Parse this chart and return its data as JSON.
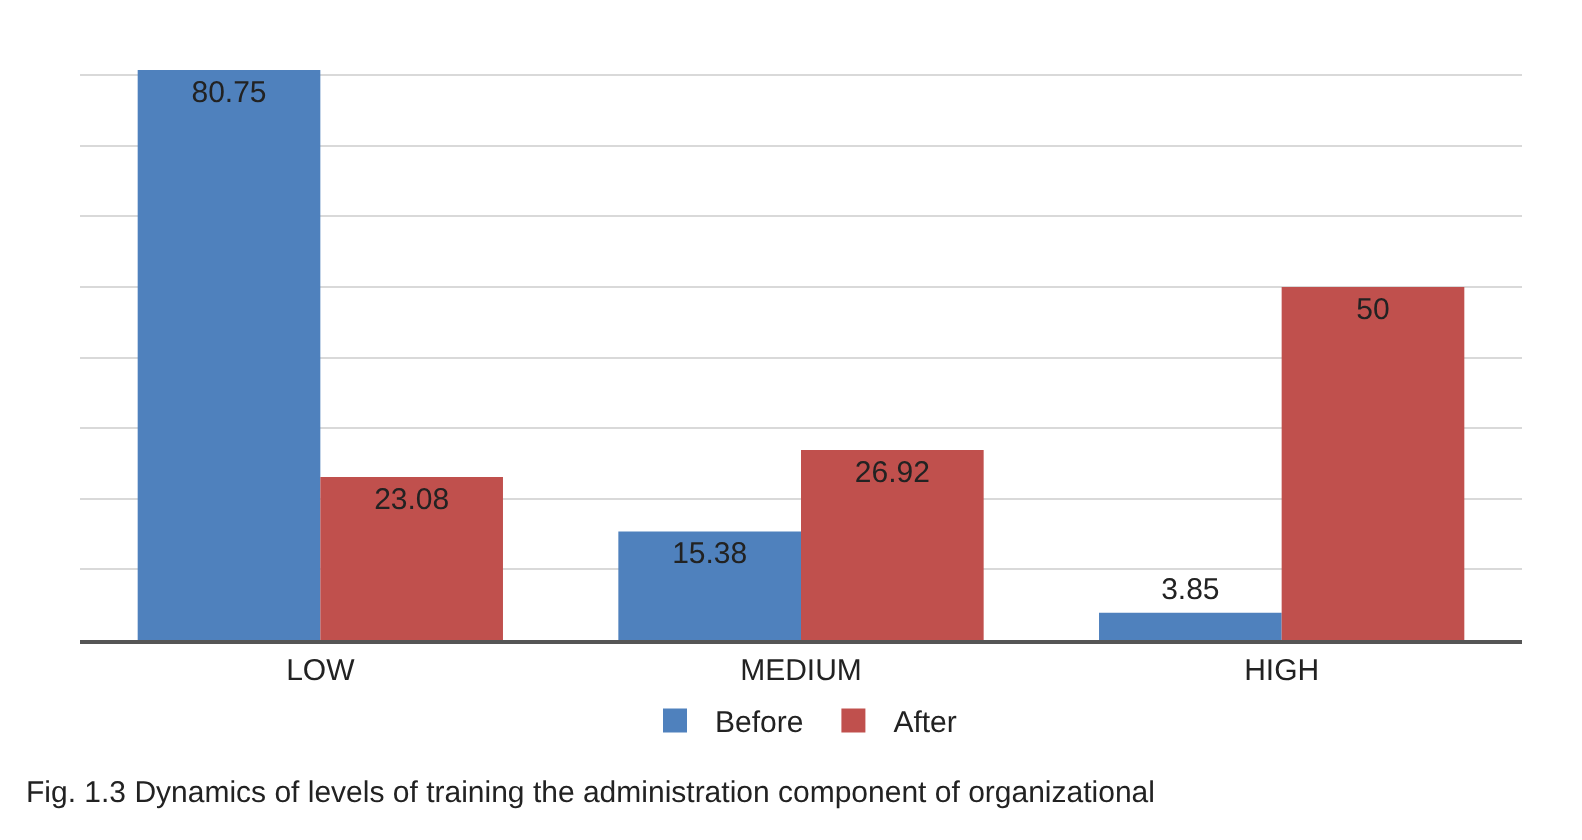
{
  "chart_data": {
    "type": "bar",
    "categories": [
      "LOW",
      "MEDIUM",
      "HIGH"
    ],
    "series": [
      {
        "name": "Before",
        "color": "#4f81bd",
        "values": [
          80.75,
          15.38,
          3.85
        ]
      },
      {
        "name": "After",
        "color": "#c0504d",
        "values": [
          23.08,
          26.92,
          50
        ]
      }
    ],
    "grid": "y",
    "legend": "bottom",
    "data_labels": true,
    "tick_labels": "x",
    "annotations": [
      "Fig. 1.3 Dynamics of levels of training the administration component of organizational"
    ]
  }
}
